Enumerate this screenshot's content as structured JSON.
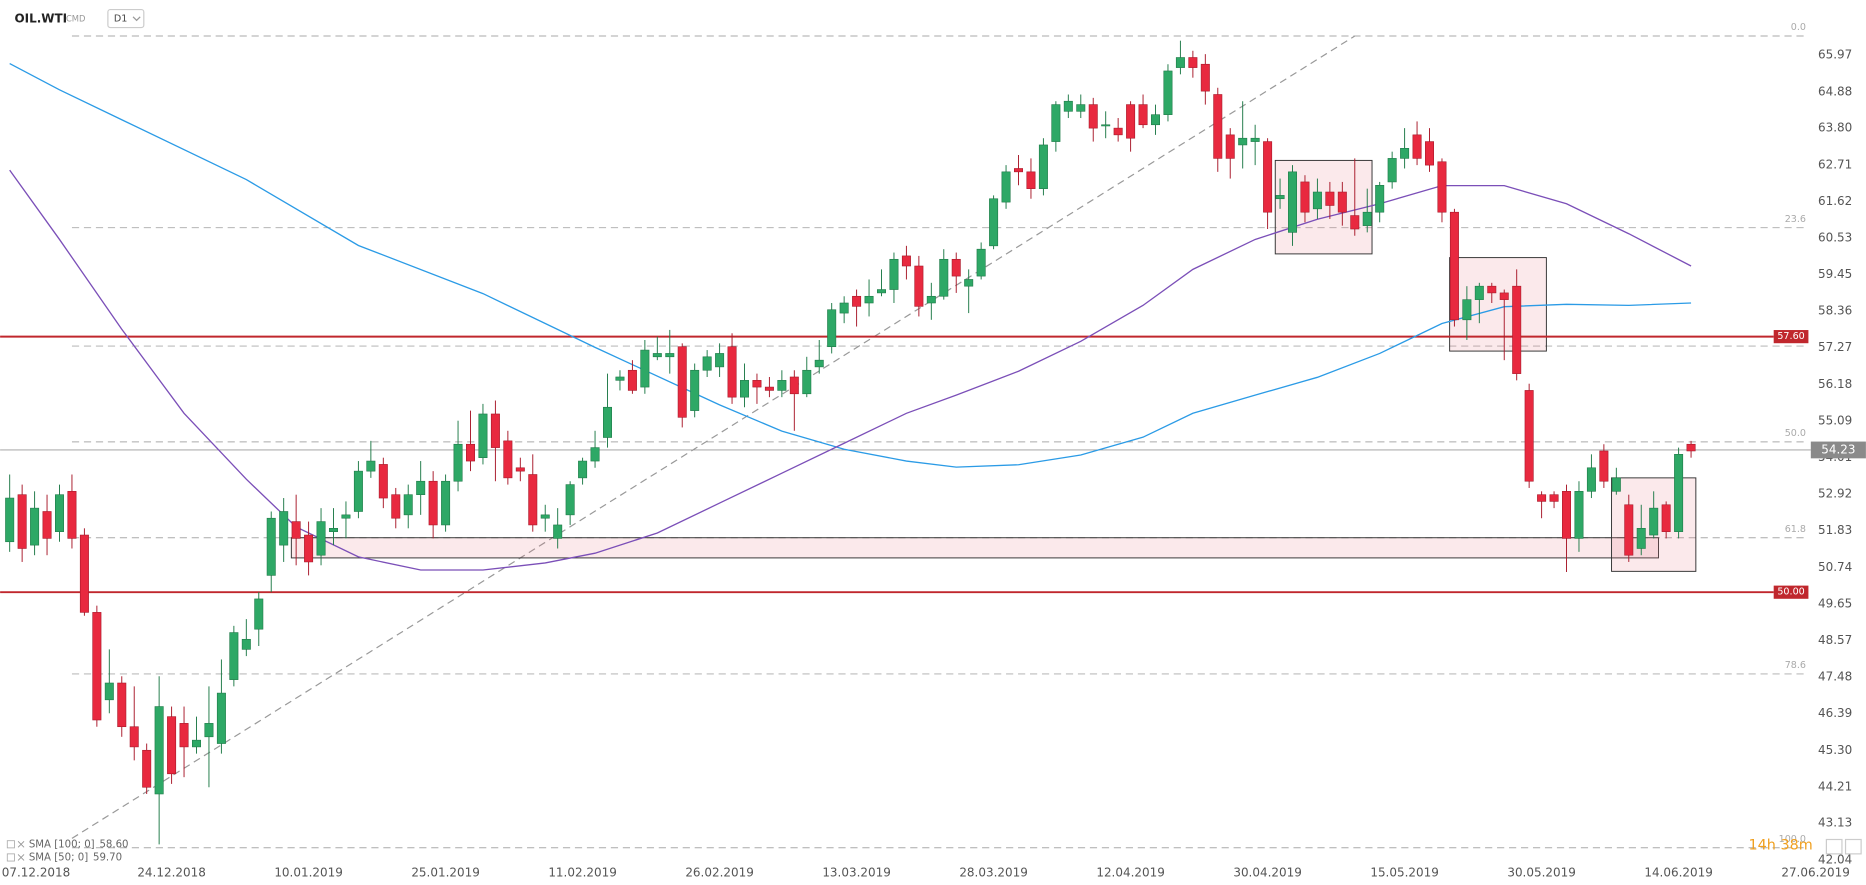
{
  "header": {
    "symbol": "OIL.WTI",
    "market": "CMD",
    "interval": "D1",
    "timer": "14h 38m"
  },
  "chart_data": {
    "type": "candlestick",
    "categories": [
      null,
      null,
      "07.12.2018",
      null,
      null,
      null,
      null,
      null,
      null,
      null,
      null,
      null,
      null,
      "24.12.2018",
      null,
      null,
      null,
      null,
      null,
      null,
      null,
      null,
      null,
      null,
      "10.01.2019",
      null,
      null,
      null,
      null,
      null,
      null,
      null,
      null,
      null,
      null,
      "25.01.2019",
      null,
      null,
      null,
      null,
      null,
      null,
      null,
      null,
      null,
      null,
      "11.02.2019",
      null,
      null,
      null,
      null,
      null,
      null,
      null,
      null,
      null,
      null,
      "26.02.2019",
      null,
      null,
      null,
      null,
      null,
      null,
      null,
      null,
      null,
      null,
      "13.03.2019",
      null,
      null,
      null,
      null,
      null,
      null,
      null,
      null,
      null,
      null,
      "28.03.2019",
      null,
      null,
      null,
      null,
      null,
      null,
      null,
      null,
      null,
      null,
      "12.04.2019",
      null,
      null,
      null,
      null,
      null,
      null,
      null,
      null,
      null,
      null,
      "30.04.2019",
      null,
      null,
      null,
      null,
      null,
      null,
      null,
      null,
      null,
      null,
      "15.05.2019",
      null,
      null,
      null,
      null,
      null,
      null,
      null,
      null,
      null,
      null,
      "30.05.2019",
      null,
      null,
      null,
      null,
      null,
      null,
      null,
      null,
      null,
      null,
      "14.06.2019",
      null,
      null,
      null,
      null,
      null,
      null,
      null,
      null,
      null,
      null,
      "27.06.2019"
    ],
    "open": [
      51.5,
      52.9,
      51.4,
      52.4,
      51.8,
      53.0,
      51.7,
      49.4,
      46.8,
      47.3,
      46.0,
      45.3,
      44.0,
      46.3,
      46.1,
      45.4,
      45.7,
      45.5,
      47.4,
      48.3,
      48.9,
      50.5,
      51.4,
      52.1,
      51.7,
      51.1,
      51.8,
      52.2,
      52.4,
      53.6,
      53.8,
      52.9,
      52.3,
      52.9,
      53.3,
      52.0,
      53.3,
      54.4,
      54.0,
      55.3,
      54.5,
      53.7,
      53.5,
      52.2,
      51.6,
      52.3,
      53.4,
      53.9,
      54.6,
      56.3,
      56.6,
      56.1,
      57.0,
      57.0,
      57.3,
      55.4,
      56.6,
      56.7,
      57.3,
      55.8,
      56.3,
      56.1,
      56.0,
      56.4,
      55.9,
      56.7,
      57.3,
      58.3,
      58.8,
      58.6,
      58.9,
      59.0,
      60.0,
      59.7,
      58.6,
      58.8,
      59.9,
      59.1,
      59.4,
      60.3,
      61.6,
      62.6,
      62.5,
      62.0,
      63.4,
      64.3,
      64.3,
      64.5,
      63.9,
      63.8,
      64.5,
      64.5,
      63.9,
      64.2,
      65.6,
      65.9,
      65.7,
      64.8,
      63.6,
      63.3,
      63.4,
      63.4,
      61.7,
      60.7,
      62.2,
      61.4,
      61.9,
      61.9,
      61.2,
      60.9,
      61.3,
      62.2,
      62.9,
      63.6,
      63.4,
      62.8,
      61.3,
      58.1,
      58.7,
      59.1,
      58.9,
      59.1,
      56.0,
      52.9,
      52.9,
      53.0,
      51.6,
      53.0,
      54.2,
      53.0,
      52.6,
      51.3,
      51.7,
      52.6,
      51.8,
      54.4,
      null,
      null,
      null,
      null,
      null,
      null,
      null,
      null,
      null,
      null
    ],
    "high": [
      53.5,
      53.2,
      53.0,
      52.9,
      53.2,
      53.5,
      51.9,
      49.6,
      48.3,
      47.5,
      47.2,
      45.5,
      47.5,
      46.6,
      46.6,
      46.3,
      47.2,
      48.0,
      49.0,
      49.2,
      50.0,
      52.4,
      52.8,
      52.9,
      52.1,
      52.5,
      52.5,
      52.7,
      53.9,
      54.5,
      54.0,
      53.1,
      53.2,
      53.9,
      53.6,
      53.5,
      55.1,
      55.4,
      55.6,
      55.7,
      54.8,
      54.0,
      54.1,
      52.6,
      52.5,
      53.3,
      54.0,
      54.8,
      56.5,
      56.6,
      56.9,
      57.5,
      57.6,
      57.8,
      57.4,
      56.8,
      57.2,
      57.4,
      57.7,
      56.8,
      56.5,
      56.4,
      56.6,
      56.6,
      57.0,
      57.5,
      58.6,
      58.8,
      59.0,
      59.3,
      59.6,
      60.1,
      60.3,
      60.0,
      59.2,
      60.2,
      60.1,
      59.6,
      60.4,
      61.8,
      62.7,
      63.0,
      62.9,
      63.5,
      64.6,
      64.8,
      64.8,
      64.7,
      64.3,
      64.1,
      64.6,
      64.8,
      64.5,
      65.7,
      66.4,
      66.1,
      66.0,
      65.0,
      63.8,
      64.6,
      63.9,
      63.5,
      62.3,
      62.7,
      62.4,
      62.3,
      62.2,
      62.2,
      62.9,
      62.0,
      62.2,
      63.1,
      63.8,
      64.0,
      63.8,
      62.9,
      61.4,
      59.1,
      59.2,
      59.2,
      59.0,
      59.6,
      56.2,
      53.0,
      53.0,
      53.2,
      53.3,
      54.1,
      54.4,
      53.7,
      52.9,
      52.6,
      53.0,
      52.7,
      54.3,
      54.5,
      null,
      null,
      null,
      null,
      null,
      null,
      null,
      null,
      null,
      null
    ],
    "low": [
      51.2,
      50.9,
      51.1,
      51.1,
      51.5,
      51.3,
      49.3,
      46.0,
      46.4,
      45.7,
      45.0,
      44.0,
      42.5,
      44.3,
      44.5,
      45.2,
      44.2,
      45.2,
      47.2,
      48.1,
      48.4,
      50.0,
      50.9,
      50.8,
      50.5,
      50.8,
      51.4,
      51.6,
      52.2,
      53.4,
      52.5,
      51.9,
      51.9,
      52.3,
      51.6,
      51.8,
      53.0,
      53.6,
      53.8,
      53.3,
      53.2,
      53.3,
      51.8,
      51.8,
      51.3,
      52.0,
      53.2,
      53.7,
      54.3,
      56.0,
      55.9,
      55.9,
      56.9,
      56.5,
      54.9,
      55.2,
      56.4,
      56.4,
      55.6,
      55.5,
      55.6,
      55.8,
      55.8,
      54.8,
      55.8,
      56.5,
      57.1,
      58.0,
      57.9,
      58.2,
      58.8,
      58.6,
      59.3,
      58.2,
      58.1,
      58.7,
      58.9,
      58.3,
      59.3,
      60.2,
      61.4,
      62.1,
      61.7,
      61.8,
      63.1,
      64.1,
      64.1,
      63.4,
      63.5,
      63.4,
      63.1,
      63.8,
      63.6,
      64.0,
      65.4,
      65.3,
      64.5,
      62.5,
      62.3,
      62.6,
      62.7,
      60.8,
      61.4,
      60.3,
      61.0,
      61.1,
      61.1,
      60.9,
      60.6,
      60.7,
      61.0,
      62.0,
      62.6,
      62.7,
      62.5,
      61.0,
      57.9,
      57.5,
      58.0,
      58.6,
      56.9,
      56.3,
      53.1,
      52.2,
      52.5,
      50.6,
      51.2,
      52.8,
      53.1,
      52.9,
      50.9,
      51.1,
      51.6,
      51.6,
      51.6,
      54.0,
      null,
      null,
      null,
      null,
      null,
      null,
      null,
      null,
      null,
      null
    ],
    "close": [
      52.8,
      51.3,
      52.5,
      51.6,
      52.9,
      51.6,
      49.4,
      46.2,
      47.3,
      46.0,
      45.4,
      44.2,
      46.6,
      44.6,
      45.4,
      45.6,
      46.1,
      47.0,
      48.8,
      48.6,
      49.8,
      52.2,
      52.4,
      51.6,
      50.9,
      52.1,
      51.9,
      52.3,
      53.6,
      53.9,
      52.8,
      52.2,
      52.9,
      53.3,
      52.0,
      53.3,
      54.4,
      53.9,
      55.3,
      54.3,
      53.4,
      53.6,
      52.0,
      52.3,
      52.0,
      53.2,
      53.9,
      54.3,
      55.5,
      56.4,
      56.0,
      57.2,
      57.1,
      57.1,
      55.2,
      56.6,
      57.0,
      57.1,
      55.8,
      56.3,
      56.1,
      56.0,
      56.3,
      55.9,
      56.6,
      56.9,
      58.4,
      58.6,
      58.5,
      58.8,
      59.0,
      59.9,
      59.7,
      58.5,
      58.8,
      59.9,
      59.4,
      59.3,
      60.2,
      61.7,
      62.5,
      62.5,
      62.0,
      63.3,
      64.5,
      64.6,
      64.5,
      63.8,
      63.9,
      63.6,
      63.5,
      63.9,
      64.2,
      65.5,
      65.9,
      65.6,
      64.9,
      62.9,
      62.9,
      63.5,
      63.5,
      61.3,
      61.8,
      62.5,
      61.3,
      61.9,
      61.5,
      61.3,
      60.8,
      61.3,
      62.1,
      62.9,
      63.2,
      62.9,
      62.7,
      61.3,
      58.1,
      58.7,
      59.1,
      58.9,
      58.7,
      56.5,
      53.3,
      52.7,
      52.7,
      51.6,
      53.0,
      53.7,
      53.3,
      53.4,
      51.1,
      51.9,
      52.5,
      51.8,
      54.1,
      54.2,
      null,
      null,
      null,
      null,
      null,
      null,
      null,
      null,
      null,
      null
    ],
    "up_color": "#2ea866",
    "down_color": "#e8293f",
    "sma": [
      {
        "name": "SMA [100; 0]",
        "last_label": "58.60",
        "color": "#2b9be6",
        "x": [
          0,
          4,
          9,
          19,
          28,
          38,
          47,
          57,
          62,
          67,
          72,
          76,
          81,
          86,
          91,
          95,
          100,
          105,
          110,
          115,
          120,
          125,
          130,
          135
        ],
        "values": [
          65.72,
          64.94,
          64.05,
          62.27,
          60.31,
          58.88,
          57.28,
          55.57,
          54.79,
          54.25,
          53.9,
          53.72,
          53.79,
          54.08,
          54.61,
          55.32,
          55.86,
          56.39,
          57.1,
          57.99,
          58.49,
          58.56,
          58.53,
          58.6
        ]
      },
      {
        "name": "SMA [50; 0]",
        "last_label": "59.70",
        "color": "#7b4fb8",
        "x": [
          0,
          4,
          9,
          14,
          19,
          23,
          28,
          33,
          38,
          43,
          47,
          52,
          57,
          62,
          67,
          72,
          76,
          81,
          86,
          91,
          95,
          100,
          105,
          110,
          115,
          120,
          125,
          130,
          135
        ],
        "values": [
          62.55,
          60.49,
          57.82,
          55.32,
          53.36,
          51.94,
          51.05,
          50.66,
          50.66,
          50.87,
          51.16,
          51.76,
          52.65,
          53.54,
          54.43,
          55.32,
          55.86,
          56.57,
          57.46,
          58.53,
          59.6,
          60.49,
          61.09,
          61.55,
          62.09,
          62.09,
          61.55,
          60.66,
          59.7
        ]
      }
    ],
    "last_price": 54.23,
    "levels": [
      {
        "price": 57.6,
        "label": "57.60"
      },
      {
        "price": 50,
        "label": "50.00"
      }
    ],
    "level_color": "#c0272d",
    "fib_levels": [
      {
        "label": "0.0",
        "price": 66.54
      },
      {
        "label": "23.6",
        "price": 60.84
      },
      {
        "label": null,
        "price": 57.32
      },
      {
        "label": "50.0",
        "price": 54.47
      },
      {
        "label": "61.8",
        "price": 51.62
      },
      {
        "label": "78.6",
        "price": 47.57
      },
      {
        "label": "100.0",
        "price": 42.4
      }
    ],
    "trendline": {
      "from_index": 5,
      "from_price": 42.68,
      "to_index": 108,
      "to_price": 66.54
    },
    "boxes": [
      {
        "from_index": 23,
        "to_index": 132,
        "top": 51.62,
        "bottom": 51.02
      },
      {
        "from_index": 102,
        "to_index": 109,
        "top": 62.84,
        "bottom": 60.06
      },
      {
        "from_index": 116,
        "to_index": 123,
        "top": 59.95,
        "bottom": 57.17
      },
      {
        "from_index": 129,
        "to_index": 135,
        "top": 53.4,
        "bottom": 50.62
      }
    ],
    "ylim": [
      41.97,
      67.61
    ],
    "yticks": [
      42.04,
      43.13,
      44.21,
      {
        "value": 45.3,
        "label": "45.30"
      },
      46.39,
      47.48,
      48.57,
      49.65,
      50.74,
      51.83,
      52.92,
      54.01,
      55.09,
      56.18,
      57.27,
      58.36,
      59.45,
      60.53,
      61.62,
      62.71,
      {
        "value": 63.8,
        "label": "63.80"
      },
      64.88,
      65.97
    ],
    "grid": false
  }
}
